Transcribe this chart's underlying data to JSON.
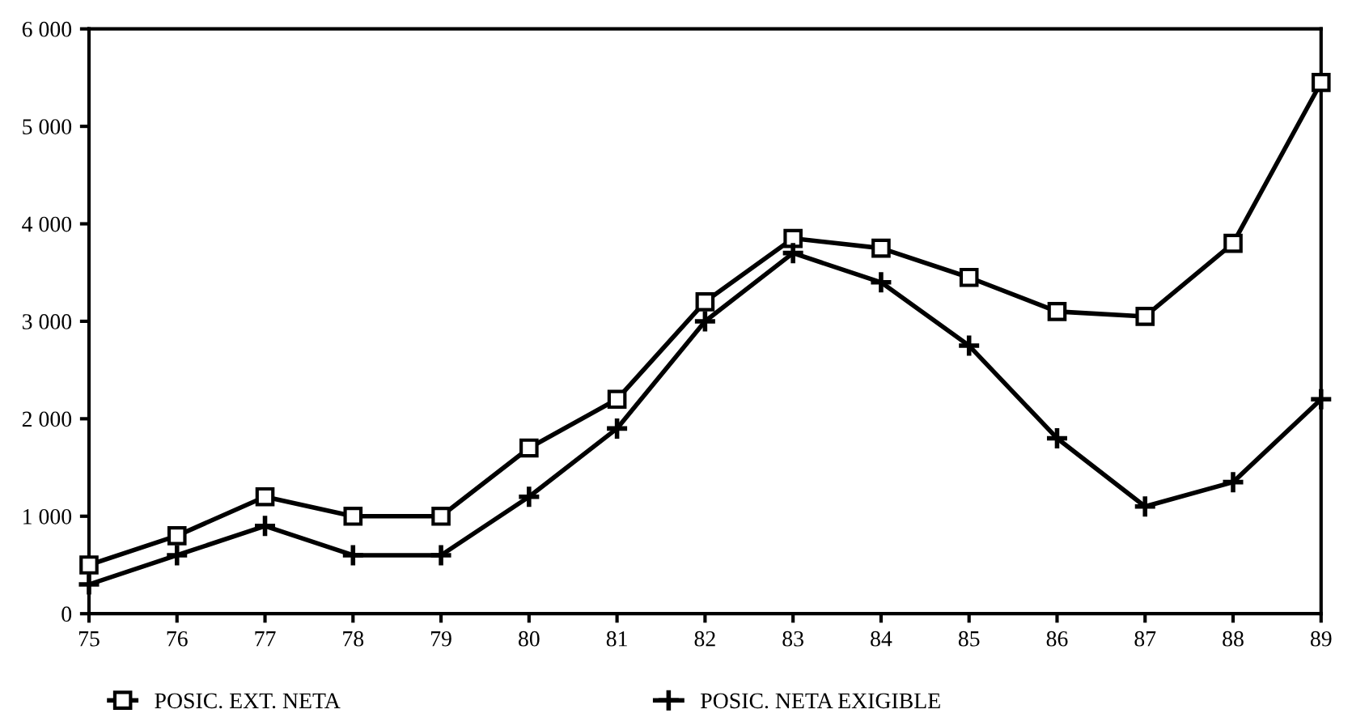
{
  "chart_data": {
    "type": "line",
    "x": [
      75,
      76,
      77,
      78,
      79,
      80,
      81,
      82,
      83,
      84,
      85,
      86,
      87,
      88,
      89
    ],
    "series": [
      {
        "name": "POSIC. EXT. NETA",
        "color": "#000000",
        "marker": "square",
        "values": [
          500,
          800,
          1200,
          1000,
          1000,
          1700,
          2200,
          3200,
          3850,
          3750,
          3450,
          3100,
          3050,
          3800,
          5450
        ]
      },
      {
        "name": "POSIC. NETA EXIGIBLE",
        "color": "#000000",
        "marker": "cross",
        "values": [
          300,
          600,
          900,
          600,
          600,
          1200,
          1900,
          3000,
          3700,
          3400,
          2750,
          1800,
          1100,
          1350,
          2200
        ]
      }
    ],
    "xlim": [
      75,
      89
    ],
    "xticks": [
      75,
      76,
      77,
      78,
      79,
      80,
      81,
      82,
      83,
      84,
      85,
      86,
      87,
      88,
      89
    ],
    "ylim": [
      0,
      6000
    ],
    "yticks": [
      {
        "value": 0,
        "label": "0"
      },
      {
        "value": 1000,
        "label": "1 000"
      },
      {
        "value": 2000,
        "label": "2 000"
      },
      {
        "value": 3000,
        "label": "3 000"
      },
      {
        "value": 4000,
        "label": "4 000"
      },
      {
        "value": 5000,
        "label": "5 000"
      },
      {
        "value": 6000,
        "label": "6 000"
      }
    ],
    "grid": false,
    "legend": "bottom",
    "line_style": "solid"
  }
}
